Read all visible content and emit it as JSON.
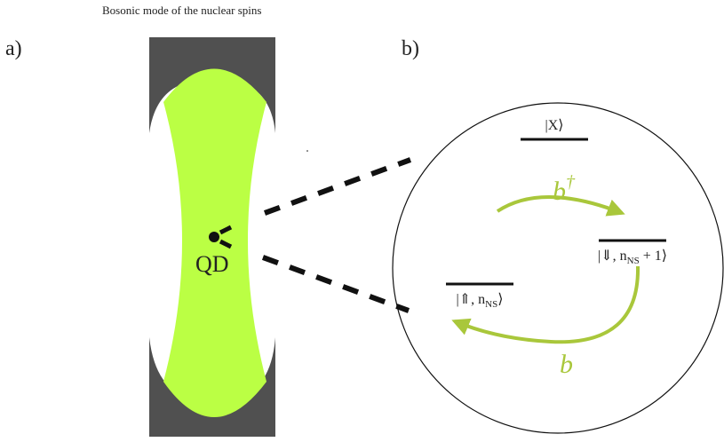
{
  "caption": "Bosonic mode of the nuclear spins",
  "panel_a": {
    "label": "a)",
    "dot_label": "QD"
  },
  "panel_b": {
    "label": "b)",
    "levels": [
      {
        "label": "|X⟩"
      },
      {
        "label": "|⇑, n",
        "sub": "NS",
        "tail": "⟩"
      },
      {
        "label": "|⇓, n",
        "sub": "NS",
        "tail": " + 1⟩"
      }
    ],
    "raising": {
      "label": "b",
      "sup": "†"
    },
    "lowering": {
      "label": "b"
    }
  }
}
